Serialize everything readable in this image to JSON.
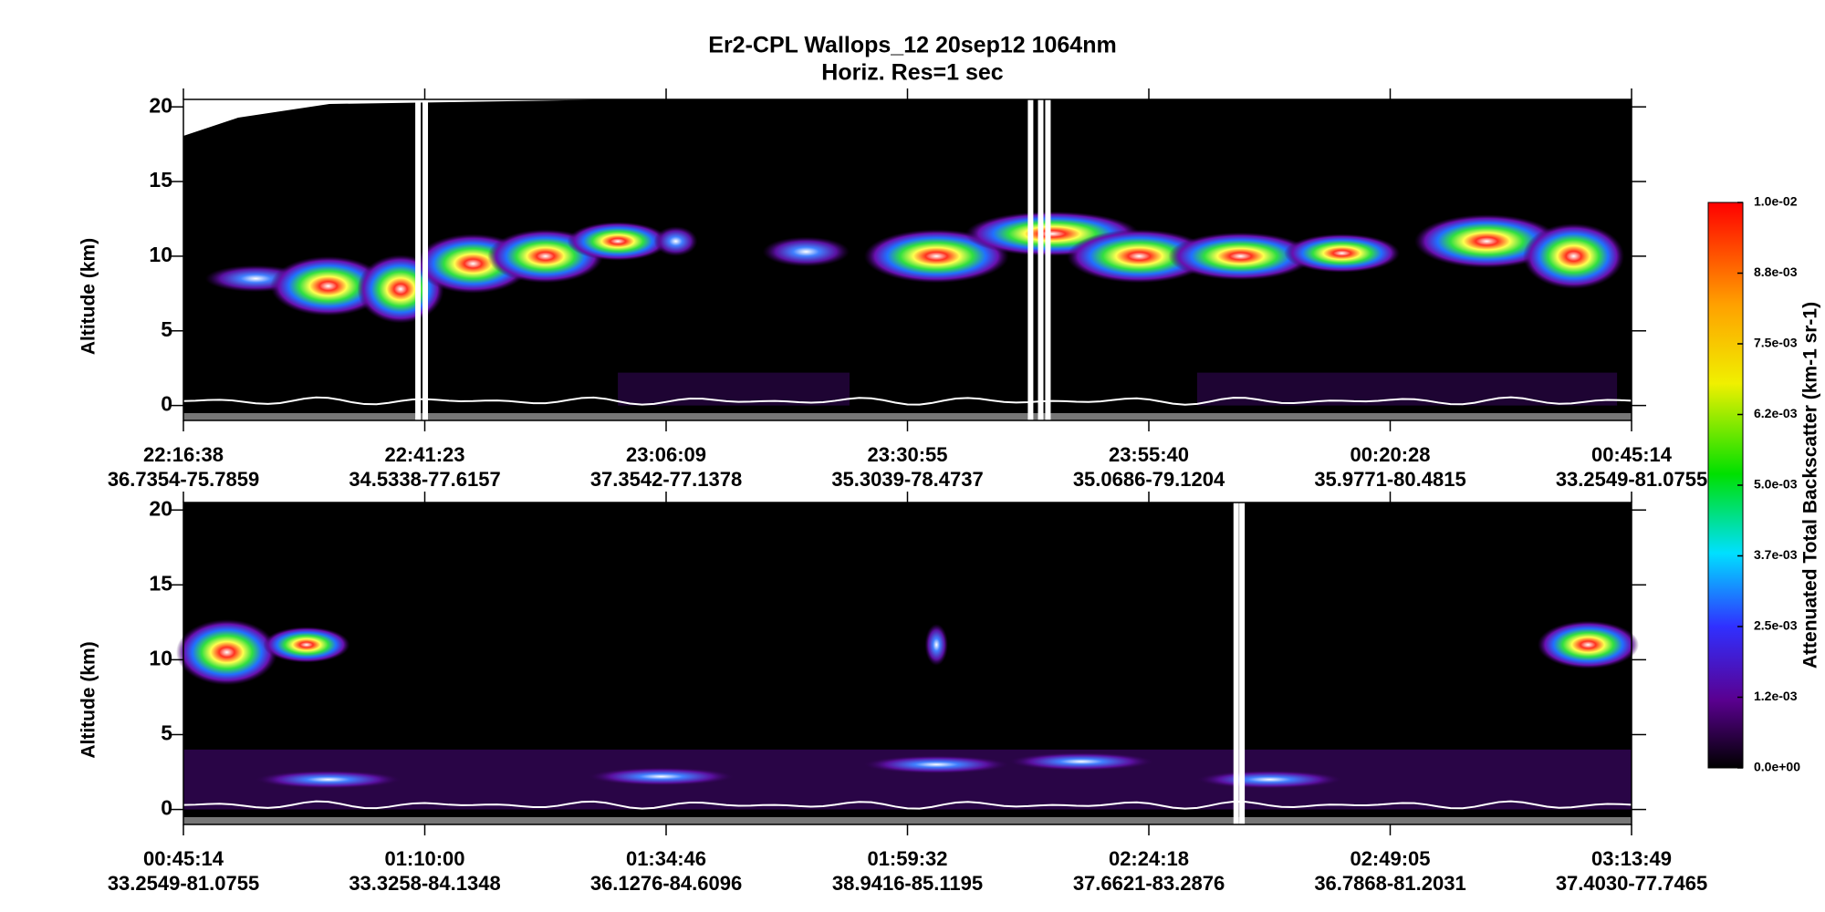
{
  "title": "Er2-CPL  Wallops_12  20sep12  1064nm",
  "subtitle": "Horiz. Res=1 sec",
  "chart_data": [
    {
      "type": "curtain",
      "ylabel": "Altitude (km)",
      "ylim": [
        -1,
        20.5
      ],
      "yticks": [
        0,
        5,
        10,
        15,
        20
      ],
      "xtick_labels": [
        {
          "time": "22:16:38",
          "location": "36.7354-75.7859"
        },
        {
          "time": "22:41:23",
          "location": "34.5338-77.6157"
        },
        {
          "time": "23:06:09",
          "location": "37.3542-77.1378"
        },
        {
          "time": "23:30:55",
          "location": "35.3039-78.4737"
        },
        {
          "time": "23:55:40",
          "location": "35.0686-79.1204"
        },
        {
          "time": "00:20:28",
          "location": "35.9771-80.4815"
        },
        {
          "time": "00:45:14",
          "location": "33.2549-81.0755"
        }
      ]
    },
    {
      "type": "curtain",
      "ylabel": "Altitude (km)",
      "ylim": [
        -1,
        20.5
      ],
      "yticks": [
        0,
        5,
        10,
        15,
        20
      ],
      "xtick_labels": [
        {
          "time": "00:45:14",
          "location": "33.2549-81.0755"
        },
        {
          "time": "01:10:00",
          "location": "33.3258-84.1348"
        },
        {
          "time": "01:34:46",
          "location": "36.1276-84.6096"
        },
        {
          "time": "01:59:32",
          "location": "38.9416-85.1195"
        },
        {
          "time": "02:24:18",
          "location": "37.6621-83.2876"
        },
        {
          "time": "02:49:05",
          "location": "36.7868-81.2031"
        },
        {
          "time": "03:13:49",
          "location": "37.4030-77.7465"
        }
      ]
    }
  ],
  "colorbar": {
    "label": "Attenuated Total Backscatter (km-1 sr-1)",
    "lim": [
      0,
      0.01
    ],
    "ticks": [
      {
        "value": 0,
        "label": "0.0e+00"
      },
      {
        "value": 0.00125,
        "label": "1.2e-03"
      },
      {
        "value": 0.0025,
        "label": "2.5e-03"
      },
      {
        "value": 0.00375,
        "label": "3.7e-03"
      },
      {
        "value": 0.005,
        "label": "5.0e-03"
      },
      {
        "value": 0.00625,
        "label": "6.2e-03"
      },
      {
        "value": 0.0075,
        "label": "7.5e-03"
      },
      {
        "value": 0.00875,
        "label": "8.8e-03"
      },
      {
        "value": 0.01,
        "label": "1.0e-02"
      }
    ]
  }
}
